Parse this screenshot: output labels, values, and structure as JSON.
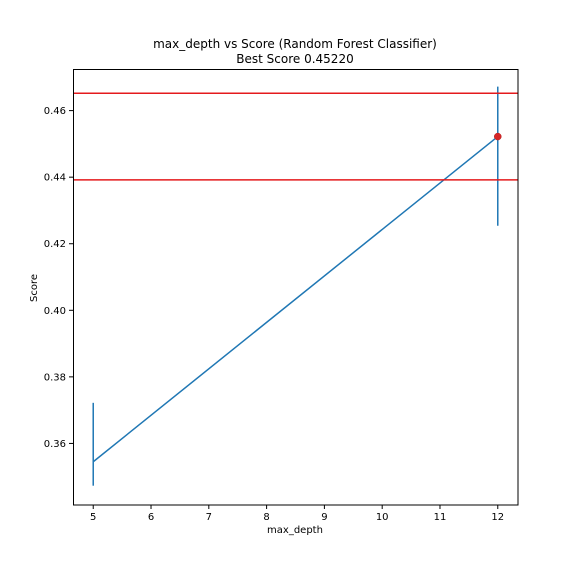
{
  "chart_data": {
    "type": "line",
    "title": "max_depth vs Score (Random Forest Classifier)",
    "subtitle": "Best Score 0.45220",
    "xlabel": "max_depth",
    "ylabel": "Score",
    "xlim": [
      4.65,
      12.35
    ],
    "ylim": [
      0.3415,
      0.4725
    ],
    "xticks": [
      5,
      6,
      7,
      8,
      9,
      10,
      11,
      12
    ],
    "xtick_labels": [
      "5",
      "6",
      "7",
      "8",
      "9",
      "10",
      "11",
      "12"
    ],
    "yticks": [
      0.36,
      0.38,
      0.4,
      0.42,
      0.44,
      0.46
    ],
    "ytick_labels": [
      "0.36",
      "0.38",
      "0.40",
      "0.42",
      "0.44",
      "0.46"
    ],
    "grid": false,
    "series": [
      {
        "color": "#1f77b4",
        "x": [
          5,
          12
        ],
        "y": [
          0.3545,
          0.4522
        ],
        "error_bars": [
          {
            "x": 5,
            "low": 0.3473,
            "high": 0.3722
          },
          {
            "x": 12,
            "low": 0.4254,
            "high": 0.4672
          }
        ]
      }
    ],
    "best_point": {
      "x": 12,
      "y": 0.4522,
      "color": "#d62728"
    },
    "hlines": [
      {
        "y": 0.4652,
        "color": "#e41a1c"
      },
      {
        "y": 0.4392,
        "color": "#e41a1c"
      }
    ]
  }
}
